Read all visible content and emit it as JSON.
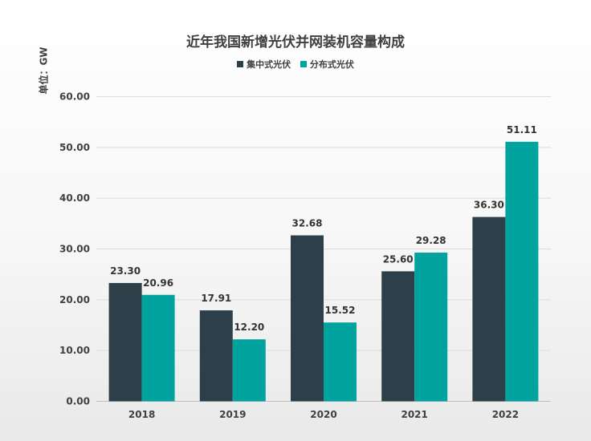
{
  "chart_data": {
    "type": "bar",
    "title": "近年我国新增光伏并网装机容量构成",
    "ylabel": "单位：GW",
    "xlabel": "",
    "categories": [
      "2018",
      "2019",
      "2020",
      "2021",
      "2022"
    ],
    "series": [
      {
        "name": "集中式光伏",
        "color": "#2d4049",
        "values": [
          23.3,
          17.91,
          32.68,
          25.6,
          36.3
        ],
        "labels": [
          "23.30",
          "17.91",
          "32.68",
          "25.60",
          "36.30"
        ]
      },
      {
        "name": "分布式光伏",
        "color": "#00a39d",
        "values": [
          20.96,
          12.2,
          15.52,
          29.28,
          51.11
        ],
        "labels": [
          "20.96",
          "12.20",
          "15.52",
          "29.28",
          "51.11"
        ]
      }
    ],
    "ylim": [
      0,
      60
    ],
    "yticks": [
      "0.00",
      "10.00",
      "20.00",
      "30.00",
      "40.00",
      "50.00",
      "60.00"
    ],
    "grid": true,
    "legend_position": "top-center"
  }
}
